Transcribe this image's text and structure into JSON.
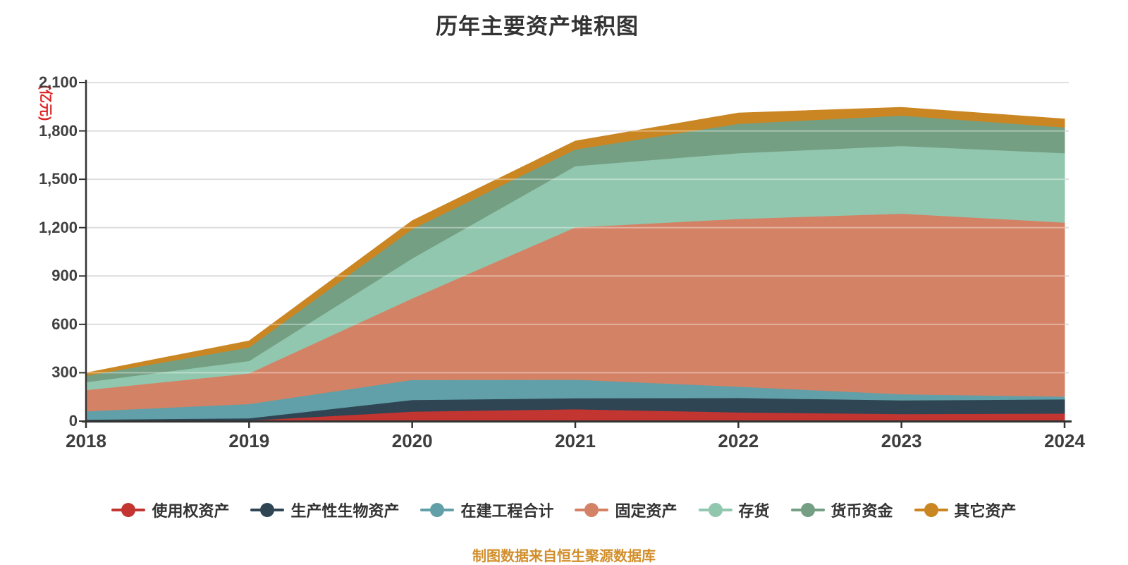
{
  "title": "历年主要资产堆积图",
  "y_axis": {
    "unit_label": "(亿元)",
    "unit_color": "#dd2222",
    "tick_labels": [
      "0",
      "300",
      "600",
      "900",
      "1,200",
      "1,500",
      "1,800",
      "2,100"
    ],
    "tick_values": [
      0,
      300,
      600,
      900,
      1200,
      1500,
      1800,
      2100
    ]
  },
  "x_axis": {
    "labels": [
      "2018",
      "2019",
      "2020",
      "2021",
      "2022",
      "2023",
      "2024"
    ]
  },
  "footer": {
    "text": "制图数据来自恒生聚源数据库",
    "color": "#d28e2a"
  },
  "style_colors": {
    "title": "#333333",
    "axis_line": "#333333",
    "gridline": "#cccccc",
    "tick_label": "#404040"
  },
  "chart_data": {
    "type": "area",
    "stacked": true,
    "grid": true,
    "legend_position": "bottom",
    "x": [
      "2018",
      "2019",
      "2020",
      "2021",
      "2022",
      "2023",
      "2024"
    ],
    "ylim": [
      0,
      2100
    ],
    "ystep": 300,
    "series": [
      {
        "name": "使用权资产",
        "color": "#c23531",
        "values": [
          0,
          5,
          60,
          75,
          55,
          45,
          48
        ]
      },
      {
        "name": "生产性生物资产",
        "color": "#2f4554",
        "values": [
          10,
          14,
          72,
          68,
          90,
          85,
          88
        ]
      },
      {
        "name": "在建工程合计",
        "color": "#61a0a8",
        "values": [
          52,
          88,
          125,
          115,
          70,
          38,
          17
        ]
      },
      {
        "name": "固定资产",
        "color": "#d48265",
        "values": [
          132,
          190,
          505,
          945,
          1040,
          1120,
          1080
        ]
      },
      {
        "name": "存货",
        "color": "#91c7ae",
        "values": [
          49,
          77,
          248,
          380,
          408,
          420,
          430
        ]
      },
      {
        "name": "货币资金",
        "color": "#749f83",
        "values": [
          39,
          84,
          182,
          103,
          182,
          188,
          160
        ]
      },
      {
        "name": "其它资产",
        "color": "#ca8622",
        "values": [
          17,
          39,
          51,
          51,
          66,
          50,
          51
        ]
      }
    ]
  }
}
